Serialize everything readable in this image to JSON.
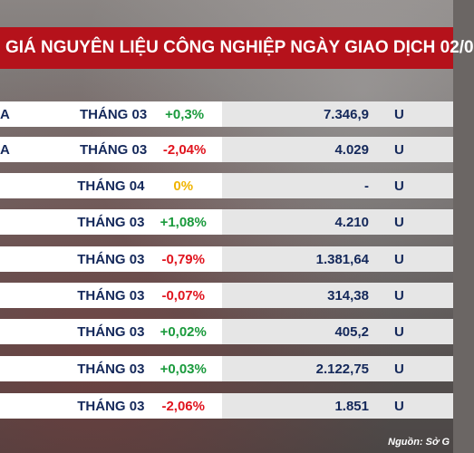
{
  "title": "GIÁ NGUYÊN LIỆU CÔNG NGHIỆP NGÀY GIAO DỊCH 02/0",
  "rows": [
    {
      "name": "A",
      "month": "THÁNG 03",
      "change": "+0,3%",
      "change_type": "pos",
      "price": "7.346,9",
      "unit": "U"
    },
    {
      "name": "A",
      "month": "THÁNG 03",
      "change": "-2,04%",
      "change_type": "neg",
      "price": "4.029",
      "unit": "U"
    },
    {
      "name": "",
      "month": "THÁNG 04",
      "change": "0%",
      "change_type": "zero",
      "price": "-",
      "unit": "U"
    },
    {
      "name": "",
      "month": "THÁNG 03",
      "change": "+1,08%",
      "change_type": "pos",
      "price": "4.210",
      "unit": "U"
    },
    {
      "name": "",
      "month": "THÁNG 03",
      "change": "-0,79%",
      "change_type": "neg",
      "price": "1.381,64",
      "unit": "U"
    },
    {
      "name": "",
      "month": "THÁNG 03",
      "change": "-0,07%",
      "change_type": "neg",
      "price": "314,38",
      "unit": "U"
    },
    {
      "name": "",
      "month": "THÁNG 03",
      "change": "+0,02%",
      "change_type": "pos",
      "price": "405,2",
      "unit": "U"
    },
    {
      "name": "",
      "month": "THÁNG 03",
      "change": "+0,03%",
      "change_type": "pos",
      "price": "2.122,75",
      "unit": "U"
    },
    {
      "name": "",
      "month": "THÁNG 03",
      "change": "-2,06%",
      "change_type": "neg",
      "price": "1.851",
      "unit": "U"
    }
  ],
  "source": "Nguồn: Sở G",
  "colors": {
    "title_bar": "#b5121b",
    "text": "#14285a",
    "positive": "#1a9a3c",
    "negative": "#e0141e",
    "neutral": "#f0b400"
  }
}
